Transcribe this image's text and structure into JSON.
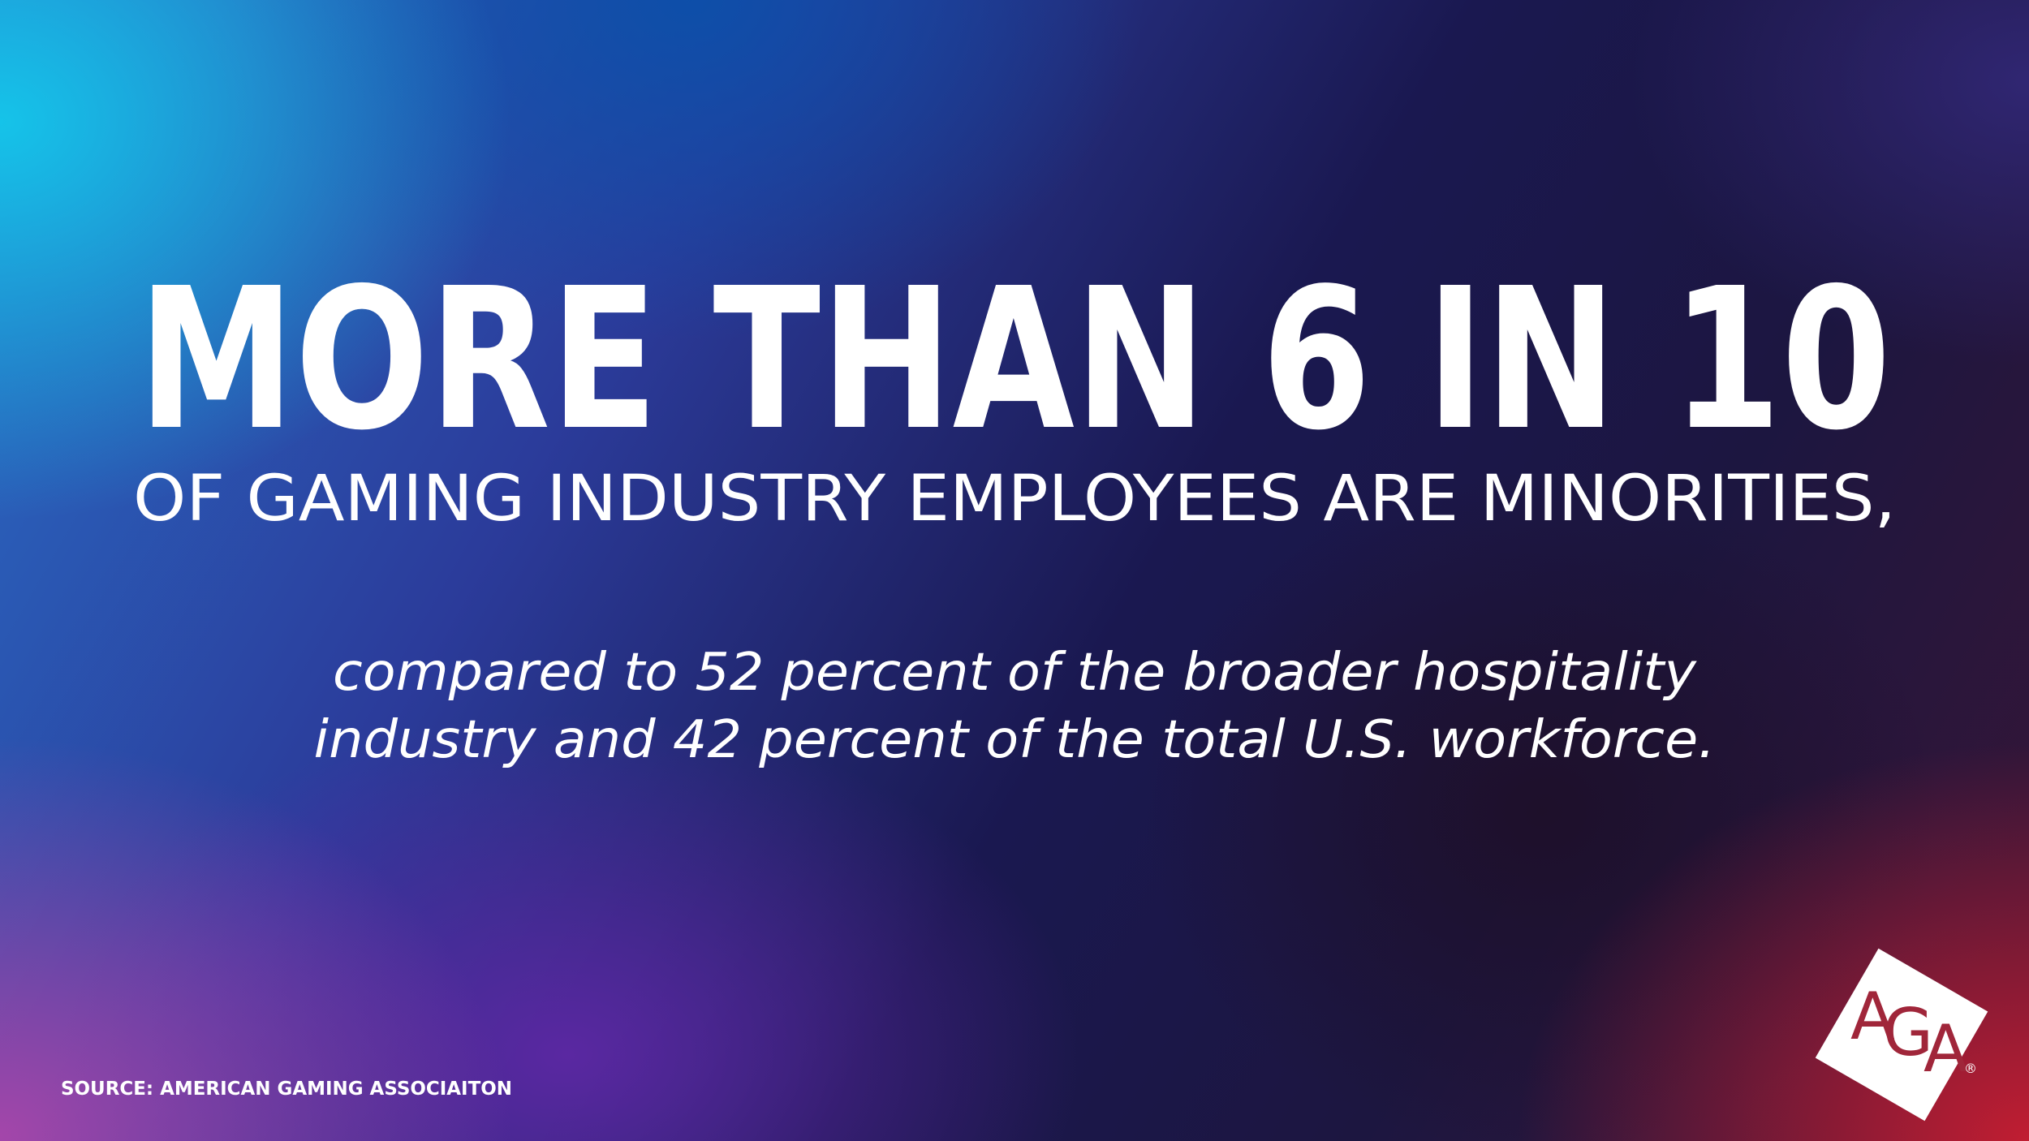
{
  "headline": "MORE THAN 6 IN 10",
  "subheadline": "OF GAMING INDUSTRY EMPLOYEES ARE MINORITIES,",
  "body": [
    "compared to 52 percent of the broader hospitality",
    "industry and 42 percent of the total U.S. workforce."
  ],
  "source": "SOURCE: AMERICAN GAMING ASSOCIAITON",
  "logo": {
    "letters": [
      "A",
      "G",
      "A"
    ],
    "mark": "®"
  }
}
